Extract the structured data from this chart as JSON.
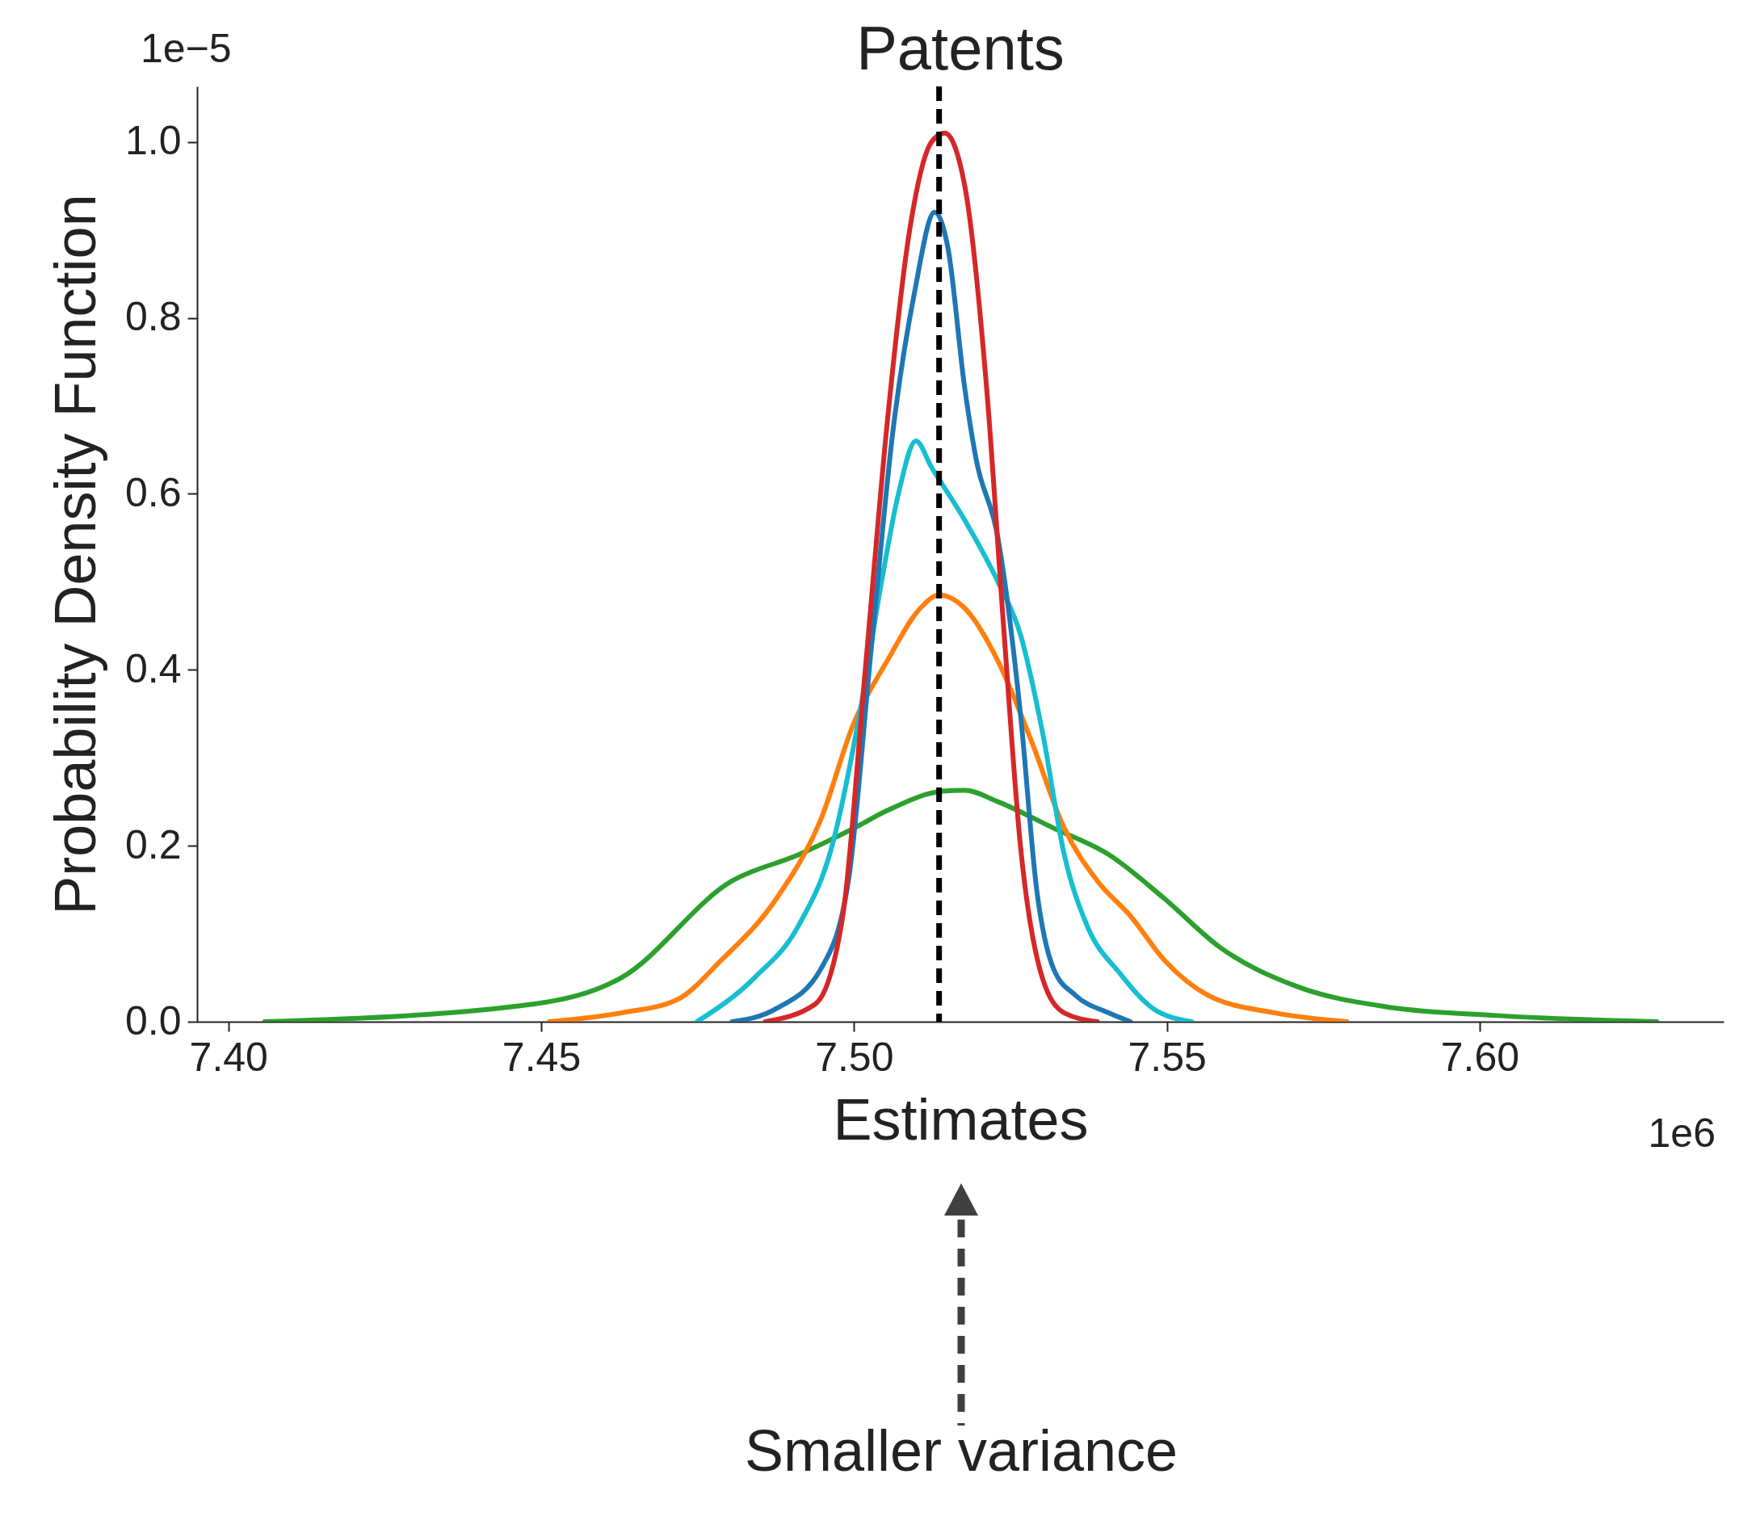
{
  "chart_data": {
    "type": "line",
    "title": "Patents",
    "xlabel": "Estimates",
    "ylabel": "Probability Density Function",
    "annotations": [
      "1e−5",
      "1e6",
      "Smaller variance"
    ],
    "xlim": [
      7.395,
      7.639
    ],
    "ylim": [
      0,
      1.063
    ],
    "xticks": [
      {
        "value": 7.4,
        "label": "7.40"
      },
      {
        "value": 7.45,
        "label": "7.45"
      },
      {
        "value": 7.5,
        "label": "7.50"
      },
      {
        "value": 7.55,
        "label": "7.55"
      },
      {
        "value": 7.6,
        "label": "7.60"
      }
    ],
    "yticks": [
      {
        "value": 0,
        "label": "0.0"
      },
      {
        "value": 0.2,
        "label": "0.2"
      },
      {
        "value": 0.4,
        "label": "0.4"
      },
      {
        "value": 0.6,
        "label": "0.6"
      },
      {
        "value": 0.8,
        "label": "0.8"
      },
      {
        "value": 1,
        "label": "1.0"
      }
    ],
    "grid": false,
    "line_style": "solid",
    "ref_lines": [
      {
        "axis": "x",
        "value": 7.5136,
        "color": "#000000",
        "line_style": "dashed"
      }
    ],
    "series": [
      {
        "color": "#2ca02c",
        "x": [
          7.4058,
          7.4487,
          7.4628,
          7.4805,
          7.4912,
          7.5,
          7.5053,
          7.5142,
          7.5177,
          7.523,
          7.5319,
          7.5407,
          7.5496,
          7.5584,
          7.5708,
          7.585,
          7.6027,
          7.6283
        ],
        "values": [
          0,
          0.02,
          0.05,
          0.16,
          0.19,
          0.22,
          0.24,
          0.262,
          0.263,
          0.25,
          0.22,
          0.19,
          0.14,
          0.085,
          0.04,
          0.017,
          0.007,
          0
        ]
      },
      {
        "color": "#ff7f0e",
        "x": [
          7.4513,
          7.4628,
          7.4717,
          7.4788,
          7.4876,
          7.4947,
          7.5,
          7.5053,
          7.5106,
          7.5136,
          7.5177,
          7.523,
          7.5283,
          7.5336,
          7.5389,
          7.5442,
          7.5496,
          7.5566,
          7.5673,
          7.5788
        ],
        "values": [
          0,
          0.01,
          0.025,
          0.07,
          0.14,
          0.23,
          0.34,
          0.41,
          0.47,
          0.485,
          0.47,
          0.41,
          0.32,
          0.22,
          0.16,
          0.12,
          0.07,
          0.03,
          0.01,
          0
        ]
      },
      {
        "color": "#17becf",
        "x": [
          7.4749,
          7.4841,
          7.4912,
          7.4965,
          7.5009,
          7.5044,
          7.5071,
          7.5099,
          7.5124,
          7.5177,
          7.523,
          7.5266,
          7.5301,
          7.5336,
          7.5372,
          7.5425,
          7.5478,
          7.554
        ],
        "values": [
          0,
          0.05,
          0.11,
          0.2,
          0.35,
          0.5,
          0.6,
          0.66,
          0.63,
          0.57,
          0.5,
          0.44,
          0.33,
          0.19,
          0.11,
          0.055,
          0.015,
          0
        ]
      },
      {
        "color": "#1f77b4",
        "x": [
          7.4805,
          7.4876,
          7.4947,
          7.4991,
          7.5027,
          7.5062,
          7.5097,
          7.5129,
          7.515,
          7.5177,
          7.5195,
          7.523,
          7.5266,
          7.5292,
          7.5319,
          7.5354,
          7.5407,
          7.5442
        ],
        "values": [
          0,
          0.015,
          0.06,
          0.16,
          0.42,
          0.67,
          0.83,
          0.92,
          0.88,
          0.72,
          0.64,
          0.55,
          0.35,
          0.15,
          0.06,
          0.03,
          0.01,
          0
        ]
      },
      {
        "color": "#d62728",
        "x": [
          7.4858,
          7.4938,
          7.4982,
          7.5018,
          7.5053,
          7.5089,
          7.5124,
          7.5145,
          7.5177,
          7.5212,
          7.5239,
          7.5266,
          7.5301,
          7.5336,
          7.5389
        ],
        "values": [
          0,
          0.02,
          0.12,
          0.4,
          0.68,
          0.9,
          1.0,
          1.01,
          0.95,
          0.72,
          0.45,
          0.2,
          0.05,
          0.01,
          0
        ]
      }
    ]
  }
}
